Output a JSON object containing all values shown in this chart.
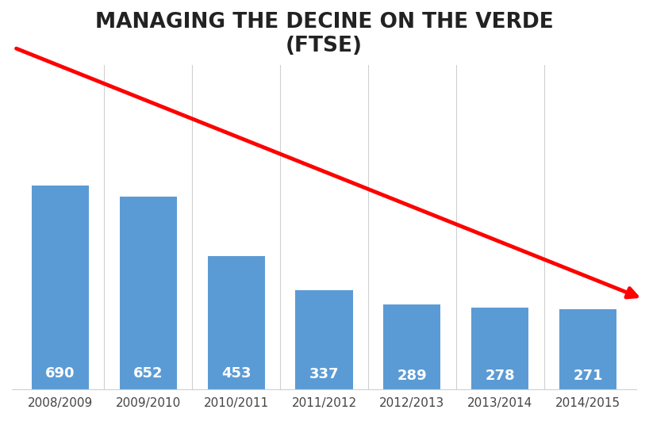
{
  "title": "MANAGING THE DECINE ON THE VERDE\n(FTSE)",
  "categories": [
    "2008/2009",
    "2009/2010",
    "2010/2011",
    "2011/2012",
    "2012/2013",
    "2013/2014",
    "2014/2015"
  ],
  "values": [
    690,
    652,
    453,
    337,
    289,
    278,
    271
  ],
  "bar_color": "#5B9BD5",
  "label_color": "#FFFFFF",
  "label_fontsize": 13,
  "title_fontsize": 19,
  "xlabel_fontsize": 11,
  "background_color": "#FFFFFF",
  "arrow_color": "#FF0000",
  "arrow_linewidth": 3.5,
  "ylim": [
    0,
    1100
  ],
  "grid_color": "#D0D0D0"
}
